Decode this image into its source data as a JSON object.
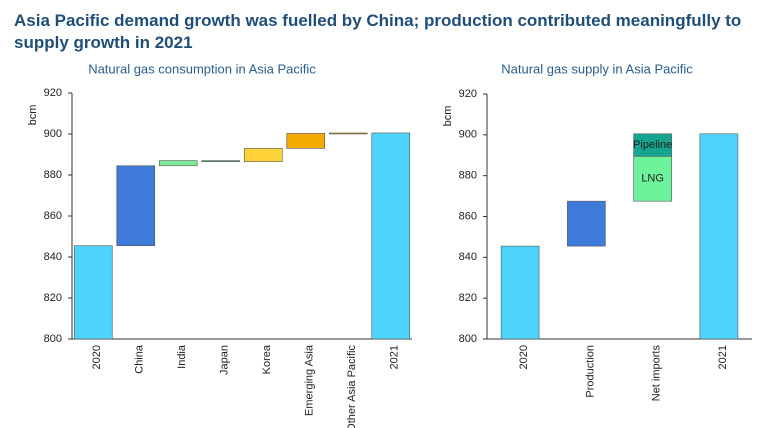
{
  "title": "Asia Pacific demand growth was fuelled by China; production contributed meaningfully to supply growth in 2021",
  "chart_data": [
    {
      "type": "waterfall",
      "title": "Natural gas consumption in Asia Pacific",
      "ylabel": "bcm",
      "categories": [
        "2020",
        "China",
        "India",
        "Japan",
        "Korea",
        "Emerging Asia",
        "Other Asia Pacific",
        "2021"
      ],
      "values": [
        845.5,
        39,
        2.5,
        -0.5,
        6.5,
        7.3,
        0.2,
        900.5
      ],
      "measure": [
        "total",
        "relative",
        "relative",
        "relative",
        "relative",
        "relative",
        "relative",
        "total"
      ],
      "colors": [
        "#4dd3fc",
        "#3f7bd8",
        "#7ee89a",
        "#3fbf6f",
        "#ffd43b",
        "#f2a900",
        "#e0a000",
        "#4dd3fc"
      ],
      "ylim": [
        800,
        920
      ],
      "yticks": [
        800,
        820,
        840,
        860,
        880,
        900,
        920
      ]
    },
    {
      "type": "waterfall",
      "title": "Natural gas supply in Asia Pacific",
      "ylabel": "bcm",
      "categories": [
        "2020",
        "Production",
        "Net imports",
        "2021"
      ],
      "values": [
        845.5,
        22,
        null,
        900.5
      ],
      "measure": [
        "total",
        "relative",
        "stack",
        "total"
      ],
      "colors": [
        "#4dd3fc",
        "#3f7bd8",
        null,
        "#4dd3fc"
      ],
      "stack_series": [
        {
          "name": "LNG",
          "value": 22,
          "color": "#6ef29a"
        },
        {
          "name": "Pipeline",
          "value": 11,
          "color": "#16a58f"
        }
      ],
      "ylim": [
        800,
        920
      ],
      "yticks": [
        800,
        820,
        840,
        860,
        880,
        900,
        920
      ]
    }
  ]
}
